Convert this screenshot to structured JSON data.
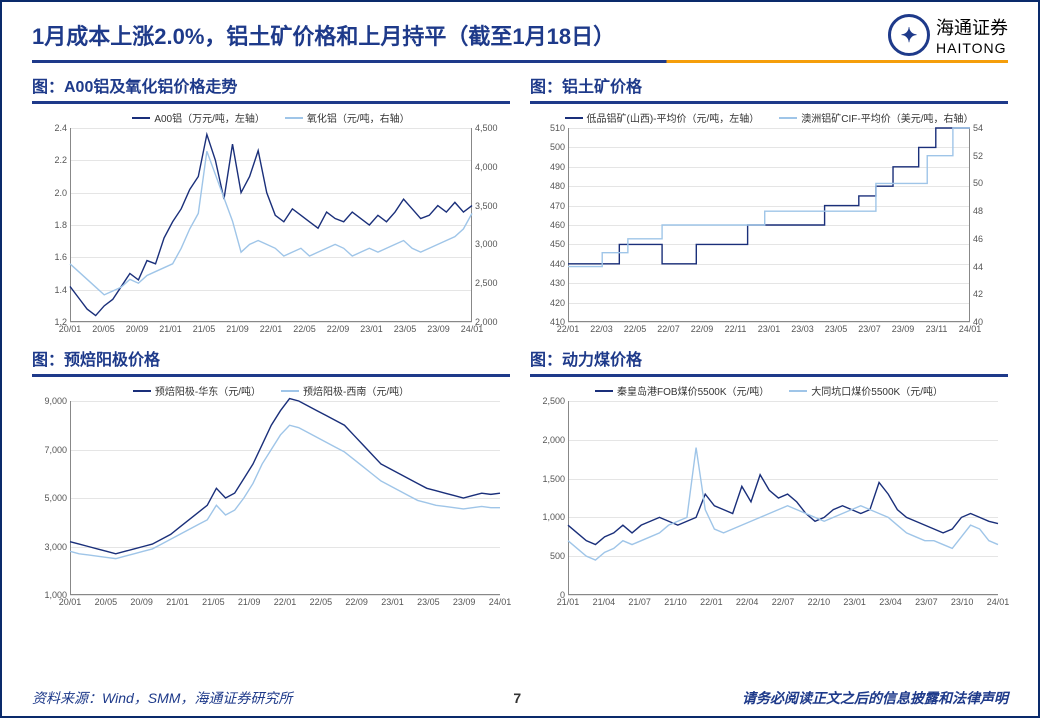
{
  "header": {
    "title": "1月成本上涨2.0%，铝土矿价格和上月持平（截至1月18日）",
    "logo_cn": "海通证券",
    "logo_en": "HAITONG"
  },
  "colors": {
    "primary": "#1a2f7a",
    "secondary": "#9fc5e8",
    "grid": "#e5e5e5",
    "axis": "#888888",
    "text": "#1e3a8a"
  },
  "charts": [
    {
      "id": "chart-a00",
      "title": "图：A00铝及氧化铝价格走势",
      "type": "line",
      "dual_y": true,
      "legend": [
        {
          "label": "A00铝（万元/吨，左轴）",
          "color": "#1a2f7a"
        },
        {
          "label": "氧化铝（元/吨，右轴）",
          "color": "#9fc5e8"
        }
      ],
      "x_labels": [
        "20/01",
        "20/05",
        "20/09",
        "21/01",
        "21/05",
        "21/09",
        "22/01",
        "22/05",
        "22/09",
        "23/01",
        "23/05",
        "23/09",
        "24/01"
      ],
      "y_left": {
        "min": 1.2,
        "max": 2.4,
        "step": 0.2,
        "format": "1dp"
      },
      "y_right": {
        "min": 2000,
        "max": 4500,
        "step": 500,
        "format": "int"
      },
      "series": [
        {
          "color": "#1a2f7a",
          "axis": "left",
          "data": [
            1.42,
            1.35,
            1.28,
            1.24,
            1.3,
            1.34,
            1.42,
            1.5,
            1.46,
            1.58,
            1.56,
            1.72,
            1.82,
            1.9,
            2.02,
            2.1,
            2.36,
            2.2,
            1.96,
            2.3,
            2.0,
            2.1,
            2.26,
            2.0,
            1.86,
            1.82,
            1.9,
            1.86,
            1.82,
            1.78,
            1.88,
            1.84,
            1.82,
            1.88,
            1.84,
            1.8,
            1.86,
            1.82,
            1.88,
            1.96,
            1.9,
            1.84,
            1.86,
            1.92,
            1.88,
            1.94,
            1.88,
            1.92
          ]
        },
        {
          "color": "#9fc5e8",
          "axis": "right",
          "data": [
            2750,
            2650,
            2550,
            2450,
            2350,
            2400,
            2450,
            2550,
            2500,
            2600,
            2650,
            2700,
            2750,
            2950,
            3200,
            3400,
            4200,
            3900,
            3600,
            3300,
            2900,
            3000,
            3050,
            3000,
            2950,
            2850,
            2900,
            2950,
            2850,
            2900,
            2950,
            3000,
            2950,
            2850,
            2900,
            2950,
            2900,
            2950,
            3000,
            3050,
            2950,
            2900,
            2950,
            3000,
            3050,
            3100,
            3200,
            3400
          ]
        }
      ]
    },
    {
      "id": "chart-bauxite",
      "title": "图：铝土矿价格",
      "type": "step",
      "dual_y": true,
      "legend": [
        {
          "label": "低品铝矿(山西)-平均价（元/吨，左轴）",
          "color": "#1a2f7a"
        },
        {
          "label": "澳洲铝矿CIF-平均价（美元/吨，右轴）",
          "color": "#9fc5e8"
        }
      ],
      "x_labels": [
        "22/01",
        "22/03",
        "22/05",
        "22/07",
        "22/09",
        "22/11",
        "23/01",
        "23/03",
        "23/05",
        "23/07",
        "23/09",
        "23/11",
        "24/01"
      ],
      "y_left": {
        "min": 410,
        "max": 510,
        "step": 10,
        "format": "int"
      },
      "y_right": {
        "min": 40,
        "max": 54,
        "step": 2,
        "format": "int"
      },
      "series": [
        {
          "color": "#1a2f7a",
          "axis": "left",
          "data": [
            440,
            440,
            440,
            440,
            440,
            440,
            450,
            450,
            450,
            450,
            450,
            440,
            440,
            440,
            440,
            450,
            450,
            450,
            450,
            450,
            450,
            460,
            460,
            460,
            460,
            460,
            460,
            460,
            460,
            460,
            470,
            470,
            470,
            470,
            475,
            475,
            480,
            480,
            490,
            490,
            490,
            500,
            500,
            510,
            510,
            510,
            510,
            510
          ]
        },
        {
          "color": "#9fc5e8",
          "axis": "right",
          "data": [
            44,
            44,
            44,
            44,
            45,
            45,
            45,
            46,
            46,
            46,
            46,
            47,
            47,
            47,
            47,
            47,
            47,
            47,
            47,
            47,
            47,
            47,
            47,
            48,
            48,
            48,
            48,
            48,
            48,
            48,
            48,
            48,
            48,
            48,
            48,
            48,
            50,
            50,
            50,
            50,
            50,
            50,
            52,
            52,
            52,
            54,
            54,
            54
          ]
        }
      ]
    },
    {
      "id": "chart-anode",
      "title": "图：预焙阳极价格",
      "type": "line",
      "dual_y": false,
      "legend": [
        {
          "label": "预焙阳极-华东（元/吨）",
          "color": "#1a2f7a"
        },
        {
          "label": "预焙阳极-西南（元/吨）",
          "color": "#9fc5e8"
        }
      ],
      "x_labels": [
        "20/01",
        "20/05",
        "20/09",
        "21/01",
        "21/05",
        "21/09",
        "22/01",
        "22/05",
        "22/09",
        "23/01",
        "23/05",
        "23/09",
        "24/01"
      ],
      "y_left": {
        "min": 1000,
        "max": 9000,
        "step": 2000,
        "format": "int"
      },
      "series": [
        {
          "color": "#1a2f7a",
          "axis": "left",
          "data": [
            3200,
            3100,
            3000,
            2900,
            2800,
            2700,
            2800,
            2900,
            3000,
            3100,
            3300,
            3500,
            3800,
            4100,
            4400,
            4700,
            5400,
            5000,
            5200,
            5800,
            6400,
            7200,
            8000,
            8600,
            9100,
            9000,
            8800,
            8600,
            8400,
            8200,
            8000,
            7600,
            7200,
            6800,
            6400,
            6200,
            6000,
            5800,
            5600,
            5400,
            5300,
            5200,
            5100,
            5000,
            5100,
            5200,
            5150,
            5200
          ]
        },
        {
          "color": "#9fc5e8",
          "axis": "left",
          "data": [
            2800,
            2700,
            2650,
            2600,
            2550,
            2500,
            2600,
            2700,
            2800,
            2900,
            3100,
            3300,
            3500,
            3700,
            3900,
            4100,
            4700,
            4300,
            4500,
            5000,
            5600,
            6400,
            7000,
            7600,
            8000,
            7900,
            7700,
            7500,
            7300,
            7100,
            6900,
            6600,
            6300,
            6000,
            5700,
            5500,
            5300,
            5100,
            4900,
            4800,
            4700,
            4650,
            4600,
            4550,
            4600,
            4650,
            4600,
            4600
          ]
        }
      ]
    },
    {
      "id": "chart-coal",
      "title": "图：动力煤价格",
      "type": "line",
      "dual_y": false,
      "legend": [
        {
          "label": "秦皇岛港FOB煤价5500K（元/吨）",
          "color": "#1a2f7a"
        },
        {
          "label": "大同坑口煤价5500K（元/吨）",
          "color": "#9fc5e8"
        }
      ],
      "x_labels": [
        "21/01",
        "21/04",
        "21/07",
        "21/10",
        "22/01",
        "22/04",
        "22/07",
        "22/10",
        "23/01",
        "23/04",
        "23/07",
        "23/10",
        "24/01"
      ],
      "y_left": {
        "min": 0,
        "max": 2500,
        "step": 500,
        "format": "int"
      },
      "series": [
        {
          "color": "#1a2f7a",
          "axis": "left",
          "data": [
            900,
            800,
            700,
            650,
            750,
            800,
            900,
            800,
            900,
            950,
            1000,
            950,
            900,
            950,
            1000,
            1300,
            1150,
            1100,
            1050,
            1400,
            1200,
            1550,
            1350,
            1250,
            1300,
            1200,
            1050,
            950,
            1000,
            1100,
            1150,
            1100,
            1050,
            1100,
            1450,
            1300,
            1100,
            1000,
            950,
            900,
            850,
            800,
            850,
            1000,
            1050,
            1000,
            950,
            920
          ]
        },
        {
          "color": "#9fc5e8",
          "axis": "left",
          "data": [
            700,
            600,
            500,
            450,
            550,
            600,
            700,
            650,
            700,
            750,
            800,
            900,
            950,
            1000,
            1900,
            1100,
            850,
            800,
            850,
            900,
            950,
            1000,
            1050,
            1100,
            1150,
            1100,
            1050,
            1000,
            950,
            1000,
            1050,
            1100,
            1150,
            1100,
            1050,
            1000,
            900,
            800,
            750,
            700,
            700,
            650,
            600,
            750,
            900,
            850,
            700,
            650
          ]
        }
      ]
    }
  ],
  "footer": {
    "source": "资料来源：Wind，SMM，海通证券研究所",
    "page": "7",
    "disclaimer": "请务必阅读正文之后的信息披露和法律声明"
  }
}
